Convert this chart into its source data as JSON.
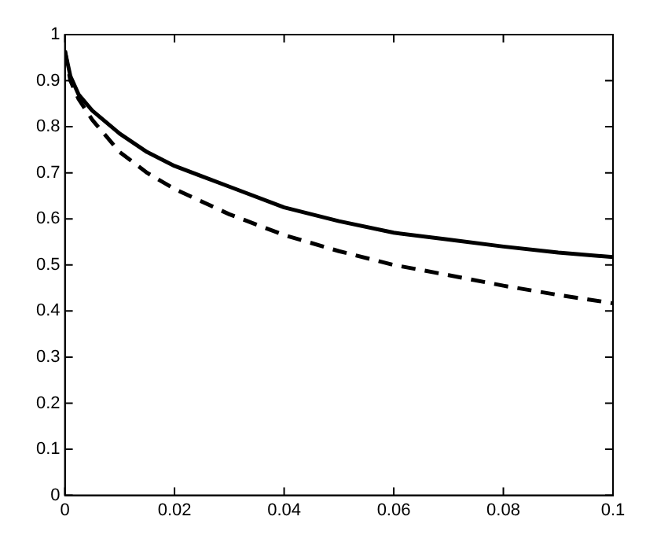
{
  "chart_data": {
    "type": "line",
    "x": [
      0,
      0.001,
      0.0025,
      0.005,
      0.01,
      0.015,
      0.02,
      0.03,
      0.04,
      0.05,
      0.06,
      0.07,
      0.08,
      0.09,
      0.1
    ],
    "series": [
      {
        "color": "#000000",
        "line_style": "solid",
        "values": [
          0.965,
          0.91,
          0.87,
          0.835,
          0.785,
          0.745,
          0.715,
          0.67,
          0.625,
          0.595,
          0.57,
          0.555,
          0.54,
          0.527,
          0.517
        ]
      },
      {
        "color": "#000000",
        "line_style": "dashed",
        "values": [
          0.965,
          0.9,
          0.86,
          0.815,
          0.745,
          0.7,
          0.665,
          0.61,
          0.565,
          0.53,
          0.5,
          0.478,
          0.455,
          0.435,
          0.417
        ]
      }
    ],
    "xlim": [
      0,
      0.1
    ],
    "xticks": [
      0,
      0.02,
      0.04,
      0.06,
      0.08,
      0.1
    ],
    "ylim": [
      0,
      1
    ],
    "yticks": [
      0,
      0.1,
      0.2,
      0.3,
      0.4,
      0.5,
      0.6,
      0.7,
      0.8,
      0.9,
      1
    ],
    "grid": false,
    "legend": false,
    "marker": "none"
  }
}
